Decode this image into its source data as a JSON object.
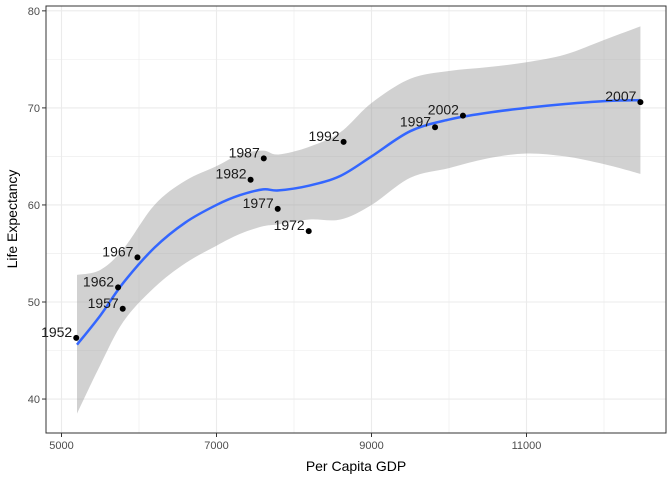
{
  "chart_data": {
    "type": "scatter",
    "xlabel": "Per Capita GDP",
    "ylabel": "Life Expectancy",
    "xlim": [
      4800,
      12800
    ],
    "ylim": [
      36.5,
      80.5
    ],
    "x_ticks": [
      5000,
      7000,
      9000,
      11000
    ],
    "y_ticks": [
      40,
      50,
      60,
      70,
      80
    ],
    "grid": true,
    "points": [
      {
        "label": "1952",
        "x": 5190,
        "y": 46.3
      },
      {
        "label": "1957",
        "x": 5790,
        "y": 49.3
      },
      {
        "label": "1962",
        "x": 5730,
        "y": 51.5
      },
      {
        "label": "1967",
        "x": 5980,
        "y": 54.6
      },
      {
        "label": "1972",
        "x": 8190,
        "y": 57.3
      },
      {
        "label": "1977",
        "x": 7790,
        "y": 59.6
      },
      {
        "label": "1982",
        "x": 7440,
        "y": 62.6
      },
      {
        "label": "1987",
        "x": 7610,
        "y": 64.8
      },
      {
        "label": "1992",
        "x": 8640,
        "y": 66.5
      },
      {
        "label": "1997",
        "x": 9820,
        "y": 68.0
      },
      {
        "label": "2002",
        "x": 10180,
        "y": 69.2
      },
      {
        "label": "2007",
        "x": 12470,
        "y": 70.6
      }
    ],
    "smooth_line": {
      "x": [
        5200,
        5500,
        5800,
        6200,
        6600,
        7000,
        7300,
        7600,
        7800,
        8200,
        8600,
        9000,
        9500,
        10000,
        10500,
        11000,
        11500,
        12000,
        12470
      ],
      "y": [
        45.6,
        48.6,
        52.0,
        55.6,
        58.2,
        60.0,
        61.0,
        61.6,
        61.5,
        62.0,
        63.0,
        65.0,
        67.6,
        68.8,
        69.5,
        70.0,
        70.4,
        70.7,
        70.8
      ]
    },
    "confidence_band": {
      "x": [
        5200,
        5500,
        5800,
        6200,
        6600,
        7000,
        7300,
        7600,
        7800,
        8200,
        8600,
        9000,
        9500,
        10000,
        10500,
        11000,
        11500,
        12000,
        12470
      ],
      "lower": [
        38.5,
        43.5,
        48.0,
        51.5,
        54.0,
        55.8,
        57.0,
        57.8,
        58.0,
        58.5,
        58.5,
        60.0,
        62.8,
        63.8,
        64.8,
        65.3,
        65.0,
        64.2,
        63.2
      ],
      "upper": [
        52.8,
        53.3,
        55.5,
        60.0,
        62.5,
        64.0,
        65.2,
        65.6,
        65.2,
        66.0,
        67.5,
        70.5,
        73.0,
        73.8,
        74.2,
        74.7,
        75.5,
        77.0,
        78.4
      ]
    },
    "colors": {
      "points": "#000000",
      "line": "#3366ff",
      "band": "#999999",
      "grid": "#ebebeb",
      "panel_border": "#333333"
    }
  }
}
